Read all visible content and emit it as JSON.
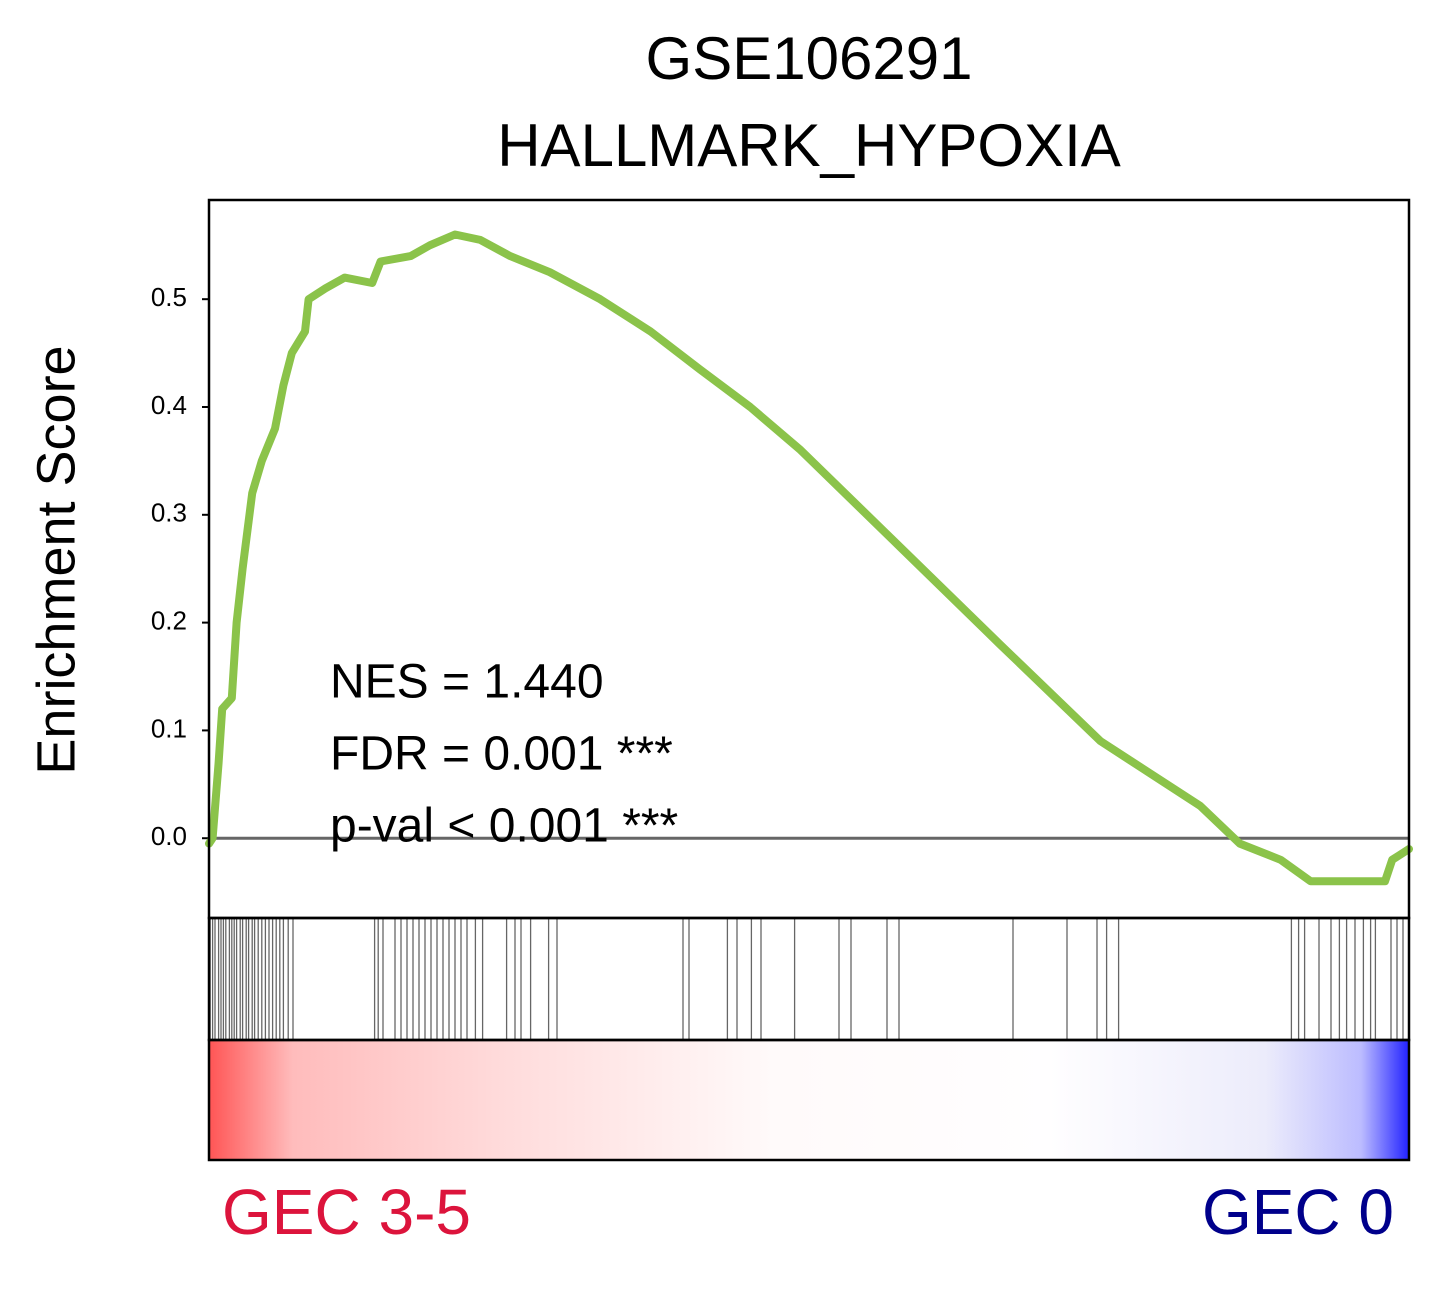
{
  "chart_data": {
    "type": "gsea",
    "title": [
      "GSE106291",
      "HALLMARK_HYPOXIA"
    ],
    "ylabel": "Enrichment Score",
    "annotations": [
      "NES = 1.440",
      "FDR = 0.001 ***",
      "p-val < 0.001 ***"
    ],
    "group_labels": [
      {
        "text": "GEC 3-5",
        "color": "#dc143c"
      },
      {
        "text": "GEC 0",
        "color": "#00008b"
      }
    ],
    "x": [
      0,
      3,
      8,
      11,
      19,
      23,
      28,
      36,
      44,
      55,
      62,
      69,
      80,
      83,
      97,
      113,
      136,
      143,
      168,
      184,
      205,
      226,
      251,
      284,
      326,
      368,
      409,
      451,
      493,
      576,
      659,
      743,
      826,
      859,
      893,
      918,
      943,
      968,
      980,
      986,
      1000
    ],
    "series": [
      {
        "name": "Enrichment Score",
        "color": "#8bc34a",
        "values": [
          -0.005,
          0.0,
          0.07,
          0.12,
          0.13,
          0.2,
          0.25,
          0.32,
          0.35,
          0.38,
          0.42,
          0.45,
          0.47,
          0.5,
          0.51,
          0.52,
          0.515,
          0.535,
          0.54,
          0.55,
          0.56,
          0.555,
          0.54,
          0.525,
          0.5,
          0.47,
          0.435,
          0.4,
          0.36,
          0.27,
          0.18,
          0.09,
          0.03,
          -0.005,
          -0.02,
          -0.04,
          -0.04,
          -0.04,
          -0.04,
          -0.02,
          -0.01
        ]
      }
    ],
    "hits": [
      1,
      3,
      5,
      8,
      10,
      12,
      14,
      17,
      19,
      21,
      23,
      26,
      28,
      31,
      33,
      36,
      38,
      41,
      44,
      47,
      50,
      53,
      56,
      59,
      62,
      66,
      70,
      138,
      141,
      145,
      155,
      160,
      165,
      170,
      175,
      180,
      185,
      190,
      195,
      200,
      205,
      210,
      215,
      222,
      228,
      248,
      255,
      260,
      268,
      283,
      290,
      395,
      400,
      432,
      440,
      452,
      460,
      488,
      525,
      535,
      565,
      575,
      670,
      715,
      740,
      748,
      758,
      902,
      908,
      913,
      925,
      935,
      942,
      948,
      955,
      962,
      968,
      972,
      985,
      990,
      995
    ],
    "hit_color": "#666666",
    "hline": 0,
    "xlim": [
      0,
      1000
    ],
    "ylim": [
      -0.074,
      0.592
    ],
    "yticks": [
      {
        "value": 0,
        "label": "0.0"
      },
      0.1,
      0.2,
      0.3,
      0.4,
      0.5
    ]
  }
}
